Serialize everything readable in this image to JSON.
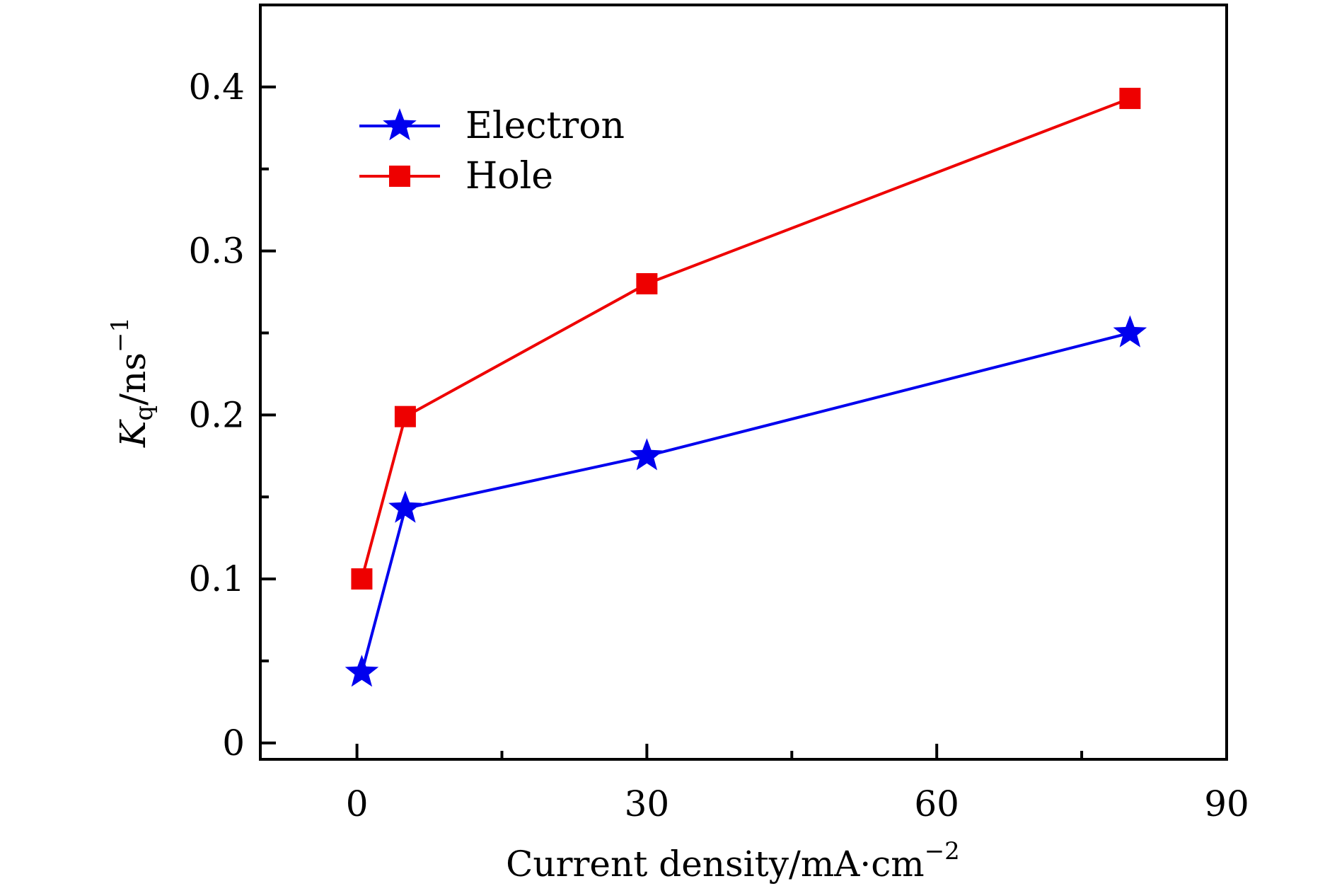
{
  "chart_data": {
    "type": "line",
    "xlabel": "Current density/mA·cm",
    "xlabel_sup": "−2",
    "ylabel_main": "K",
    "ylabel_sub": "q",
    "ylabel_rest": "/ns",
    "ylabel_sup": "−1",
    "xlim": [
      -10,
      90
    ],
    "ylim": [
      -0.01,
      0.45
    ],
    "xticks": [
      0,
      30,
      60,
      90
    ],
    "xtick_labels": [
      "0",
      "30",
      "60",
      "90"
    ],
    "xminor": [
      15,
      45,
      75
    ],
    "yticks": [
      0,
      0.1,
      0.2,
      0.3,
      0.4
    ],
    "ytick_labels": [
      "0",
      "0.1",
      "0.2",
      "0.3",
      "0.4"
    ],
    "yminor": [
      0.05,
      0.15,
      0.25,
      0.35
    ],
    "grid": false,
    "legend_position": "top-left",
    "series": [
      {
        "name": "Electron",
        "marker": "star",
        "color": "#0000ee",
        "x": [
          0.5,
          5,
          30,
          80
        ],
        "y": [
          0.043,
          0.143,
          0.175,
          0.25
        ]
      },
      {
        "name": "Hole",
        "marker": "square",
        "color": "#ee0000",
        "x": [
          0.5,
          5,
          30,
          80
        ],
        "y": [
          0.1,
          0.199,
          0.28,
          0.393
        ]
      }
    ]
  }
}
